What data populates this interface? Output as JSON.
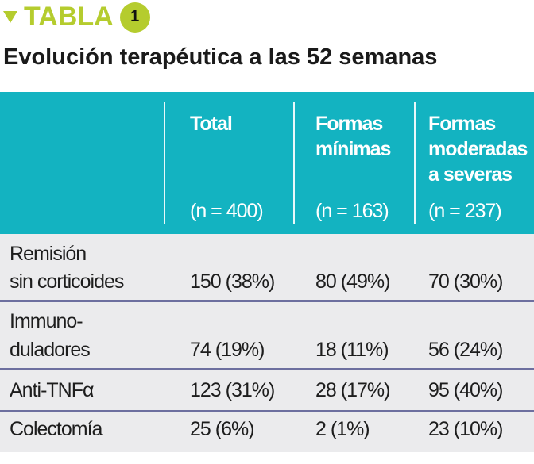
{
  "tag": {
    "label": "TABLA",
    "number": "1"
  },
  "title": "Evolución terapéutica a las 52 semanas",
  "columns": [
    {
      "label": "Total",
      "n": "(n = 400)"
    },
    {
      "label": "Formas\nmínimas",
      "n": "(n = 163)"
    },
    {
      "label": "Formas\nmoderadas\na severas",
      "n": "(n = 237)"
    }
  ],
  "rows": [
    {
      "label1": "Remisión",
      "label2": "sin corticoides",
      "values": [
        "150 (38%)",
        "80 (49%)",
        "70 (30%)"
      ]
    },
    {
      "label1": "Immuno-",
      "label2": "duladores",
      "values": [
        "74 (19%)",
        "18 (11%)",
        "56 (24%)"
      ]
    },
    {
      "label1": "",
      "label2": "Anti-TNFα",
      "values": [
        "123 (31%)",
        "28 (17%)",
        "95 (40%)"
      ]
    },
    {
      "label1": "",
      "label2": "Colectomía",
      "values": [
        "25 (6%)",
        "2 (1%)",
        "23 (10%)"
      ]
    }
  ]
}
